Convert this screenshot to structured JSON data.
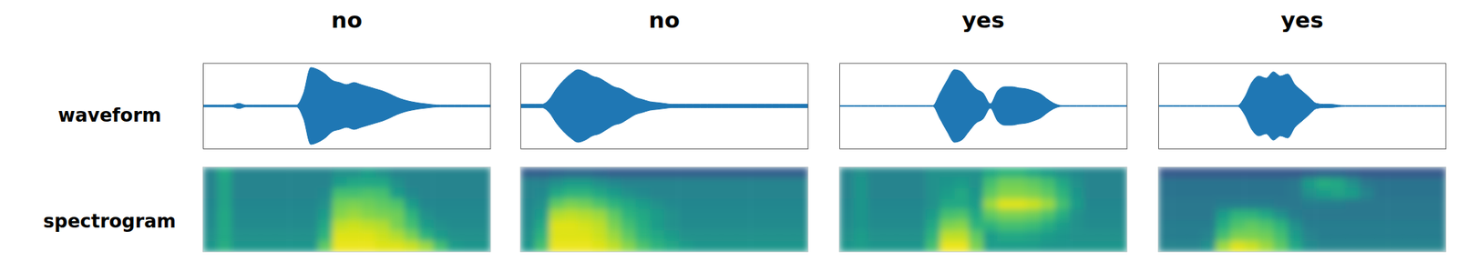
{
  "row_labels": [
    "waveform",
    "spectrogram"
  ],
  "chart_data": [
    {
      "type": "envelope",
      "title": "no",
      "color": "#1f77b4",
      "tick_labels": false,
      "xlim": [
        0,
        40
      ],
      "ylim": [
        -1,
        1
      ],
      "x": [
        0,
        1,
        2,
        3,
        4,
        5,
        6,
        7,
        8,
        9,
        10,
        11,
        12,
        13,
        14,
        15,
        16,
        17,
        18,
        19,
        20,
        21,
        22,
        23,
        24,
        25,
        26,
        27,
        28,
        29,
        30,
        31,
        32,
        33,
        34,
        35,
        36,
        37,
        38,
        39,
        40
      ],
      "values": [
        0.02,
        0.02,
        0.02,
        0.02,
        0.02,
        0.06,
        0.02,
        0.02,
        0.02,
        0.02,
        0.02,
        0.02,
        0.02,
        0.02,
        0.3,
        0.9,
        0.85,
        0.75,
        0.6,
        0.55,
        0.5,
        0.55,
        0.5,
        0.45,
        0.4,
        0.35,
        0.28,
        0.2,
        0.14,
        0.1,
        0.07,
        0.05,
        0.03,
        0.02,
        0.02,
        0.02,
        0.02,
        0.02,
        0.02,
        0.02,
        0.02
      ]
    },
    {
      "type": "envelope",
      "title": "no",
      "color": "#1f77b4",
      "tick_labels": false,
      "xlim": [
        0,
        40
      ],
      "ylim": [
        -1,
        1
      ],
      "x": [
        0,
        1,
        2,
        3,
        4,
        5,
        6,
        7,
        8,
        9,
        10,
        11,
        12,
        13,
        14,
        15,
        16,
        17,
        18,
        19,
        20,
        21,
        22,
        23,
        24,
        25,
        26,
        27,
        28,
        29,
        30,
        31,
        32,
        33,
        34,
        35,
        36,
        37,
        38,
        39,
        40
      ],
      "values": [
        0.04,
        0.04,
        0.04,
        0.04,
        0.15,
        0.4,
        0.6,
        0.75,
        0.85,
        0.8,
        0.7,
        0.65,
        0.55,
        0.45,
        0.4,
        0.3,
        0.2,
        0.15,
        0.1,
        0.08,
        0.06,
        0.04,
        0.04,
        0.04,
        0.04,
        0.04,
        0.04,
        0.04,
        0.04,
        0.04,
        0.04,
        0.04,
        0.04,
        0.04,
        0.04,
        0.04,
        0.04,
        0.04,
        0.04,
        0.04,
        0.04
      ]
    },
    {
      "type": "envelope",
      "title": "yes",
      "color": "#1f77b4",
      "tick_labels": false,
      "xlim": [
        0,
        40
      ],
      "ylim": [
        -1,
        1
      ],
      "x": [
        0,
        1,
        2,
        3,
        4,
        5,
        6,
        7,
        8,
        9,
        10,
        11,
        12,
        13,
        14,
        15,
        16,
        17,
        18,
        19,
        20,
        21,
        22,
        23,
        24,
        25,
        26,
        27,
        28,
        29,
        30,
        31,
        32,
        33,
        34,
        35,
        36,
        37,
        38,
        39,
        40
      ],
      "values": [
        0.01,
        0.01,
        0.01,
        0.01,
        0.01,
        0.01,
        0.01,
        0.01,
        0.01,
        0.01,
        0.01,
        0.01,
        0.01,
        0.01,
        0.3,
        0.6,
        0.85,
        0.8,
        0.6,
        0.4,
        0.3,
        0.05,
        0.35,
        0.45,
        0.45,
        0.42,
        0.4,
        0.35,
        0.28,
        0.15,
        0.05,
        0.01,
        0.01,
        0.01,
        0.01,
        0.01,
        0.01,
        0.01,
        0.01,
        0.01,
        0.01
      ]
    },
    {
      "type": "envelope",
      "title": "yes",
      "color": "#1f77b4",
      "tick_labels": false,
      "xlim": [
        0,
        40
      ],
      "ylim": [
        -1,
        1
      ],
      "x": [
        0,
        1,
        2,
        3,
        4,
        5,
        6,
        7,
        8,
        9,
        10,
        11,
        12,
        13,
        14,
        15,
        16,
        17,
        18,
        19,
        20,
        21,
        22,
        23,
        24,
        25,
        26,
        27,
        28,
        29,
        30,
        31,
        32,
        33,
        34,
        35,
        36,
        37,
        38,
        39,
        40
      ],
      "values": [
        0.01,
        0.01,
        0.01,
        0.01,
        0.01,
        0.01,
        0.01,
        0.01,
        0.01,
        0.01,
        0.01,
        0.01,
        0.2,
        0.55,
        0.7,
        0.65,
        0.8,
        0.7,
        0.75,
        0.5,
        0.35,
        0.2,
        0.06,
        0.04,
        0.04,
        0.02,
        0.01,
        0.01,
        0.01,
        0.01,
        0.01,
        0.01,
        0.01,
        0.01,
        0.01,
        0.01,
        0.01,
        0.01,
        0.01,
        0.01,
        0.01
      ]
    },
    {
      "type": "heatmap",
      "tick_labels": false,
      "values": [
        [
          0.45,
          0.6,
          0.45,
          0.45,
          0.45,
          0.45,
          0.45,
          0.45,
          0.45,
          0.5,
          0.5,
          0.55,
          0.5,
          0.45,
          0.45,
          0.45,
          0.45,
          0.45,
          0.45,
          0.45
        ],
        [
          0.45,
          0.58,
          0.45,
          0.45,
          0.45,
          0.45,
          0.45,
          0.45,
          0.45,
          0.55,
          0.6,
          0.6,
          0.6,
          0.5,
          0.45,
          0.45,
          0.45,
          0.45,
          0.45,
          0.45
        ],
        [
          0.45,
          0.58,
          0.45,
          0.45,
          0.45,
          0.45,
          0.45,
          0.45,
          0.47,
          0.7,
          0.7,
          0.72,
          0.7,
          0.55,
          0.47,
          0.45,
          0.45,
          0.45,
          0.45,
          0.45
        ],
        [
          0.46,
          0.58,
          0.46,
          0.46,
          0.46,
          0.46,
          0.46,
          0.46,
          0.5,
          0.78,
          0.8,
          0.78,
          0.75,
          0.72,
          0.55,
          0.46,
          0.46,
          0.46,
          0.46,
          0.46
        ],
        [
          0.47,
          0.6,
          0.47,
          0.47,
          0.47,
          0.47,
          0.47,
          0.47,
          0.55,
          0.82,
          0.85,
          0.82,
          0.8,
          0.78,
          0.65,
          0.5,
          0.47,
          0.47,
          0.47,
          0.47
        ],
        [
          0.48,
          0.6,
          0.48,
          0.48,
          0.48,
          0.48,
          0.48,
          0.48,
          0.6,
          0.9,
          0.92,
          0.9,
          0.88,
          0.8,
          0.7,
          0.55,
          0.5,
          0.48,
          0.48,
          0.48
        ],
        [
          0.5,
          0.6,
          0.5,
          0.5,
          0.5,
          0.5,
          0.5,
          0.5,
          0.65,
          0.95,
          0.95,
          0.95,
          0.92,
          0.88,
          0.8,
          0.65,
          0.55,
          0.5,
          0.5,
          0.5
        ],
        [
          0.52,
          0.62,
          0.52,
          0.52,
          0.52,
          0.52,
          0.52,
          0.52,
          0.75,
          0.97,
          0.97,
          0.97,
          0.95,
          0.95,
          0.92,
          0.85,
          0.7,
          0.55,
          0.52,
          0.52
        ]
      ]
    },
    {
      "type": "heatmap",
      "tick_labels": false,
      "values": [
        [
          0.3,
          0.3,
          0.32,
          0.33,
          0.33,
          0.32,
          0.3,
          0.3,
          0.3,
          0.3,
          0.3,
          0.3,
          0.3,
          0.3,
          0.3,
          0.3,
          0.3,
          0.3,
          0.3,
          0.3
        ],
        [
          0.45,
          0.45,
          0.5,
          0.55,
          0.55,
          0.5,
          0.47,
          0.45,
          0.45,
          0.45,
          0.45,
          0.45,
          0.45,
          0.45,
          0.45,
          0.45,
          0.45,
          0.45,
          0.45,
          0.45
        ],
        [
          0.45,
          0.47,
          0.6,
          0.65,
          0.65,
          0.6,
          0.55,
          0.5,
          0.47,
          0.45,
          0.45,
          0.45,
          0.45,
          0.45,
          0.45,
          0.45,
          0.45,
          0.45,
          0.45,
          0.45
        ],
        [
          0.46,
          0.5,
          0.75,
          0.8,
          0.78,
          0.72,
          0.65,
          0.6,
          0.55,
          0.5,
          0.47,
          0.46,
          0.46,
          0.46,
          0.46,
          0.46,
          0.46,
          0.46,
          0.46,
          0.46
        ],
        [
          0.47,
          0.55,
          0.88,
          0.9,
          0.88,
          0.85,
          0.75,
          0.65,
          0.6,
          0.55,
          0.5,
          0.47,
          0.47,
          0.47,
          0.47,
          0.47,
          0.47,
          0.47,
          0.47,
          0.47
        ],
        [
          0.48,
          0.6,
          0.95,
          0.95,
          0.93,
          0.9,
          0.8,
          0.7,
          0.62,
          0.55,
          0.5,
          0.48,
          0.48,
          0.48,
          0.48,
          0.48,
          0.48,
          0.48,
          0.48,
          0.48
        ],
        [
          0.5,
          0.65,
          0.95,
          0.95,
          0.95,
          0.92,
          0.85,
          0.75,
          0.65,
          0.6,
          0.55,
          0.5,
          0.5,
          0.5,
          0.5,
          0.5,
          0.5,
          0.5,
          0.5,
          0.5
        ],
        [
          0.52,
          0.7,
          0.97,
          0.97,
          0.97,
          0.95,
          0.9,
          0.82,
          0.72,
          0.65,
          0.6,
          0.55,
          0.52,
          0.52,
          0.52,
          0.52,
          0.52,
          0.52,
          0.52,
          0.52
        ]
      ]
    },
    {
      "type": "heatmap",
      "tick_labels": false,
      "values": [
        [
          0.45,
          0.5,
          0.45,
          0.45,
          0.45,
          0.45,
          0.5,
          0.5,
          0.5,
          0.5,
          0.6,
          0.65,
          0.65,
          0.6,
          0.55,
          0.5,
          0.47,
          0.45,
          0.45,
          0.45
        ],
        [
          0.45,
          0.52,
          0.45,
          0.45,
          0.45,
          0.45,
          0.5,
          0.52,
          0.55,
          0.5,
          0.7,
          0.78,
          0.78,
          0.75,
          0.7,
          0.6,
          0.5,
          0.45,
          0.45,
          0.45
        ],
        [
          0.45,
          0.52,
          0.45,
          0.45,
          0.45,
          0.45,
          0.5,
          0.55,
          0.6,
          0.52,
          0.75,
          0.82,
          0.82,
          0.8,
          0.75,
          0.65,
          0.52,
          0.45,
          0.45,
          0.45
        ],
        [
          0.46,
          0.52,
          0.46,
          0.46,
          0.46,
          0.46,
          0.5,
          0.6,
          0.6,
          0.55,
          0.85,
          0.95,
          0.95,
          0.92,
          0.85,
          0.7,
          0.55,
          0.46,
          0.46,
          0.46
        ],
        [
          0.47,
          0.52,
          0.47,
          0.47,
          0.47,
          0.47,
          0.55,
          0.7,
          0.72,
          0.6,
          0.75,
          0.8,
          0.8,
          0.78,
          0.72,
          0.62,
          0.5,
          0.47,
          0.47,
          0.47
        ],
        [
          0.48,
          0.52,
          0.48,
          0.48,
          0.48,
          0.48,
          0.6,
          0.8,
          0.82,
          0.65,
          0.65,
          0.7,
          0.7,
          0.68,
          0.62,
          0.55,
          0.5,
          0.48,
          0.48,
          0.48
        ],
        [
          0.5,
          0.55,
          0.5,
          0.5,
          0.5,
          0.5,
          0.65,
          0.9,
          0.9,
          0.75,
          0.55,
          0.6,
          0.6,
          0.58,
          0.55,
          0.52,
          0.5,
          0.5,
          0.5,
          0.5
        ],
        [
          0.52,
          0.55,
          0.52,
          0.52,
          0.52,
          0.52,
          0.7,
          0.97,
          0.97,
          0.8,
          0.55,
          0.55,
          0.55,
          0.55,
          0.52,
          0.52,
          0.52,
          0.52,
          0.52,
          0.52
        ]
      ]
    },
    {
      "type": "heatmap",
      "tick_labels": false,
      "values": [
        [
          0.28,
          0.28,
          0.28,
          0.28,
          0.28,
          0.28,
          0.28,
          0.28,
          0.28,
          0.28,
          0.3,
          0.32,
          0.32,
          0.3,
          0.28,
          0.28,
          0.28,
          0.28,
          0.28,
          0.28
        ],
        [
          0.38,
          0.38,
          0.38,
          0.38,
          0.38,
          0.38,
          0.38,
          0.38,
          0.38,
          0.4,
          0.55,
          0.62,
          0.6,
          0.5,
          0.4,
          0.38,
          0.38,
          0.38,
          0.38,
          0.38
        ],
        [
          0.38,
          0.38,
          0.38,
          0.38,
          0.38,
          0.38,
          0.38,
          0.38,
          0.38,
          0.4,
          0.5,
          0.55,
          0.58,
          0.55,
          0.45,
          0.38,
          0.38,
          0.38,
          0.38,
          0.38
        ],
        [
          0.4,
          0.4,
          0.4,
          0.4,
          0.42,
          0.42,
          0.42,
          0.42,
          0.4,
          0.4,
          0.42,
          0.42,
          0.42,
          0.4,
          0.4,
          0.4,
          0.4,
          0.4,
          0.4,
          0.4
        ],
        [
          0.4,
          0.4,
          0.4,
          0.4,
          0.55,
          0.65,
          0.65,
          0.6,
          0.5,
          0.42,
          0.4,
          0.4,
          0.4,
          0.4,
          0.4,
          0.4,
          0.4,
          0.4,
          0.4,
          0.4
        ],
        [
          0.42,
          0.42,
          0.42,
          0.42,
          0.62,
          0.72,
          0.75,
          0.72,
          0.65,
          0.5,
          0.42,
          0.42,
          0.42,
          0.42,
          0.42,
          0.42,
          0.42,
          0.42,
          0.42,
          0.42
        ],
        [
          0.42,
          0.42,
          0.42,
          0.45,
          0.7,
          0.8,
          0.8,
          0.78,
          0.7,
          0.55,
          0.45,
          0.42,
          0.42,
          0.42,
          0.42,
          0.42,
          0.42,
          0.42,
          0.42,
          0.42
        ],
        [
          0.45,
          0.45,
          0.45,
          0.5,
          0.85,
          0.95,
          0.92,
          0.85,
          0.75,
          0.6,
          0.48,
          0.45,
          0.45,
          0.45,
          0.45,
          0.45,
          0.45,
          0.45,
          0.45,
          0.45
        ]
      ]
    }
  ]
}
